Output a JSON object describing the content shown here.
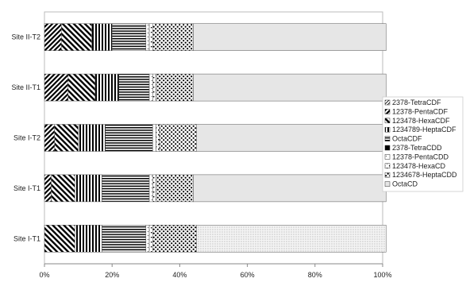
{
  "chart_data": {
    "type": "bar",
    "orientation": "horizontal",
    "stacked": true,
    "percent_stacked": true,
    "xlim": [
      0,
      100
    ],
    "x_ticks": [
      "0%",
      "20%",
      "40%",
      "60%",
      "80%",
      "100%"
    ],
    "grid": false,
    "legend_position": "right",
    "categories": [
      "Site II-T2",
      "Site II-T1",
      "Site I-T2",
      "Site I-T1",
      "Site I-T1"
    ],
    "series": [
      {
        "name": "2378-TetraCDF",
        "pattern": "diag-thin",
        "values": [
          0,
          0,
          0,
          0,
          0
        ]
      },
      {
        "name": "12378-PentaCDF",
        "pattern": "diag-fwd",
        "values": [
          5,
          7,
          3,
          2,
          0
        ]
      },
      {
        "name": "123478-HexaCDF",
        "pattern": "diag-back",
        "values": [
          9,
          8,
          7,
          7,
          9
        ]
      },
      {
        "name": "1234789-HeptaCDF",
        "pattern": "vstripe",
        "values": [
          6,
          7,
          8,
          8,
          8
        ]
      },
      {
        "name": "OctaCDF",
        "pattern": "hstripe",
        "values": [
          10,
          9,
          14,
          14,
          13
        ]
      },
      {
        "name": "2378-TetraCDD",
        "pattern": "solid-black",
        "values": [
          0,
          0,
          0,
          0,
          0
        ]
      },
      {
        "name": "12378-PentaCDD",
        "pattern": "light-dots",
        "values": [
          1,
          1,
          1,
          1,
          1
        ]
      },
      {
        "name": "123478-HexaCD",
        "pattern": "confetti",
        "values": [
          1,
          1,
          1,
          1,
          1
        ]
      },
      {
        "name": "1234678-HeptaCDD",
        "pattern": "dense-dots",
        "values": [
          12,
          11,
          11,
          11,
          13
        ]
      },
      {
        "name": "OctaCD",
        "pattern": "grey",
        "values": [
          57,
          57,
          55,
          57,
          56
        ]
      }
    ],
    "last_row_octa_pattern": "fine-dots"
  }
}
